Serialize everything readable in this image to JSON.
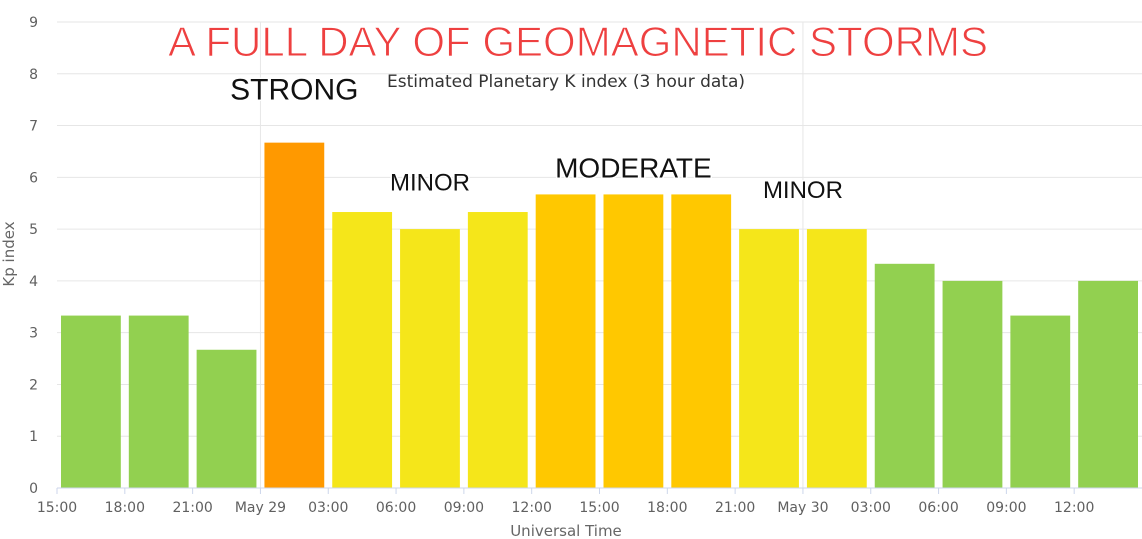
{
  "chart_data": {
    "type": "bar",
    "headline": "A FULL DAY OF GEOMAGNETIC STORMS",
    "title": "Estimated Planetary K index (3 hour data)",
    "xlabel": "Universal Time",
    "ylabel": "Kp index",
    "ylim": [
      0,
      9
    ],
    "yticks": [
      "0",
      "1",
      "2",
      "3",
      "4",
      "5",
      "6",
      "7",
      "8",
      "9"
    ],
    "x_range_hours": [
      15,
      63
    ],
    "xticks": [
      {
        "label": "15:00",
        "hour": 15
      },
      {
        "label": "18:00",
        "hour": 18
      },
      {
        "label": "21:00",
        "hour": 21
      },
      {
        "label": "May 29",
        "hour": 24
      },
      {
        "label": "03:00",
        "hour": 27
      },
      {
        "label": "06:00",
        "hour": 30
      },
      {
        "label": "09:00",
        "hour": 33
      },
      {
        "label": "12:00",
        "hour": 36
      },
      {
        "label": "15:00",
        "hour": 39
      },
      {
        "label": "18:00",
        "hour": 42
      },
      {
        "label": "21:00",
        "hour": 45
      },
      {
        "label": "May 30",
        "hour": 48
      },
      {
        "label": "03:00",
        "hour": 51
      },
      {
        "label": "06:00",
        "hour": 54
      },
      {
        "label": "09:00",
        "hour": 57
      },
      {
        "label": "12:00",
        "hour": 60
      }
    ],
    "grid": true,
    "legend": "none",
    "bars": [
      {
        "start_hour": 15,
        "end_hour": 18,
        "value": 3.33,
        "color": "#92d050"
      },
      {
        "start_hour": 18,
        "end_hour": 21,
        "value": 3.33,
        "color": "#92d050"
      },
      {
        "start_hour": 21,
        "end_hour": 24,
        "value": 2.67,
        "color": "#92d050"
      },
      {
        "start_hour": 24,
        "end_hour": 27,
        "value": 6.67,
        "color": "#ff9900"
      },
      {
        "start_hour": 27,
        "end_hour": 30,
        "value": 5.33,
        "color": "#f5e61a"
      },
      {
        "start_hour": 30,
        "end_hour": 33,
        "value": 5.0,
        "color": "#f5e61a"
      },
      {
        "start_hour": 33,
        "end_hour": 36,
        "value": 5.33,
        "color": "#f5e61a"
      },
      {
        "start_hour": 36,
        "end_hour": 39,
        "value": 5.67,
        "color": "#ffc800"
      },
      {
        "start_hour": 39,
        "end_hour": 42,
        "value": 5.67,
        "color": "#ffc800"
      },
      {
        "start_hour": 42,
        "end_hour": 45,
        "value": 5.67,
        "color": "#ffc800"
      },
      {
        "start_hour": 45,
        "end_hour": 48,
        "value": 5.0,
        "color": "#f5e61a"
      },
      {
        "start_hour": 48,
        "end_hour": 51,
        "value": 5.0,
        "color": "#f5e61a"
      },
      {
        "start_hour": 51,
        "end_hour": 54,
        "value": 4.33,
        "color": "#92d050"
      },
      {
        "start_hour": 54,
        "end_hour": 57,
        "value": 4.0,
        "color": "#92d050"
      },
      {
        "start_hour": 57,
        "end_hour": 60,
        "value": 3.33,
        "color": "#92d050"
      },
      {
        "start_hour": 60,
        "end_hour": 63,
        "value": 4.0,
        "color": "#92d050"
      }
    ],
    "annotations": [
      {
        "text": "STRONG",
        "hour": 25.5,
        "value": 7.5
      },
      {
        "text": "MINOR",
        "hour": 31.5,
        "value": 5.75
      },
      {
        "text": "MODERATE",
        "hour": 40.5,
        "value": 6.0
      },
      {
        "text": "MINOR",
        "hour": 48,
        "value": 5.6
      }
    ]
  }
}
